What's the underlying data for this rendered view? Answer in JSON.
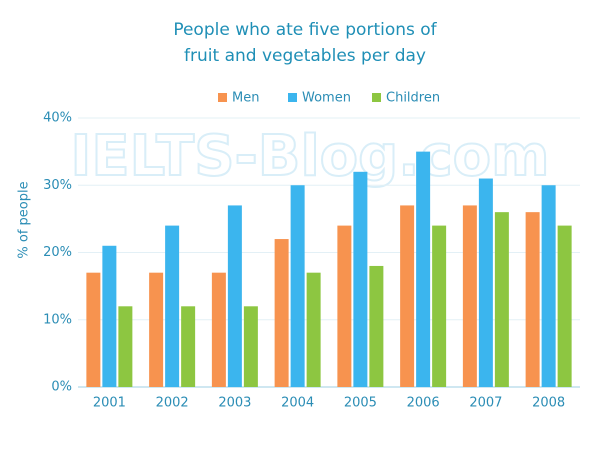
{
  "chart_data": {
    "type": "bar",
    "title": [
      "People who ate five portions of",
      "fruit and vegetables per day"
    ],
    "watermark": "IELTS-Blog.com",
    "y_label": "% of people",
    "categories": [
      "2001",
      "2002",
      "2003",
      "2004",
      "2005",
      "2006",
      "2007",
      "2008"
    ],
    "series": [
      {
        "name": "Men",
        "color": "#f7934f",
        "values": [
          17,
          17,
          17,
          22,
          24,
          27,
          27,
          26
        ]
      },
      {
        "name": "Women",
        "color": "#3bb5ee",
        "values": [
          21,
          24,
          27,
          30,
          32,
          35,
          31,
          30
        ]
      },
      {
        "name": "Children",
        "color": "#8dc641",
        "values": [
          12,
          12,
          12,
          17,
          18,
          24,
          26,
          24
        ]
      }
    ],
    "ylim": [
      0,
      40
    ],
    "yticks": [
      {
        "value": 0,
        "label": "0%"
      },
      {
        "value": 10,
        "label": "10%"
      },
      {
        "value": 20,
        "label": "20%"
      },
      {
        "value": 30,
        "label": "30%"
      },
      {
        "value": 40,
        "label": "40%"
      }
    ],
    "grid": true,
    "legend": "top"
  }
}
